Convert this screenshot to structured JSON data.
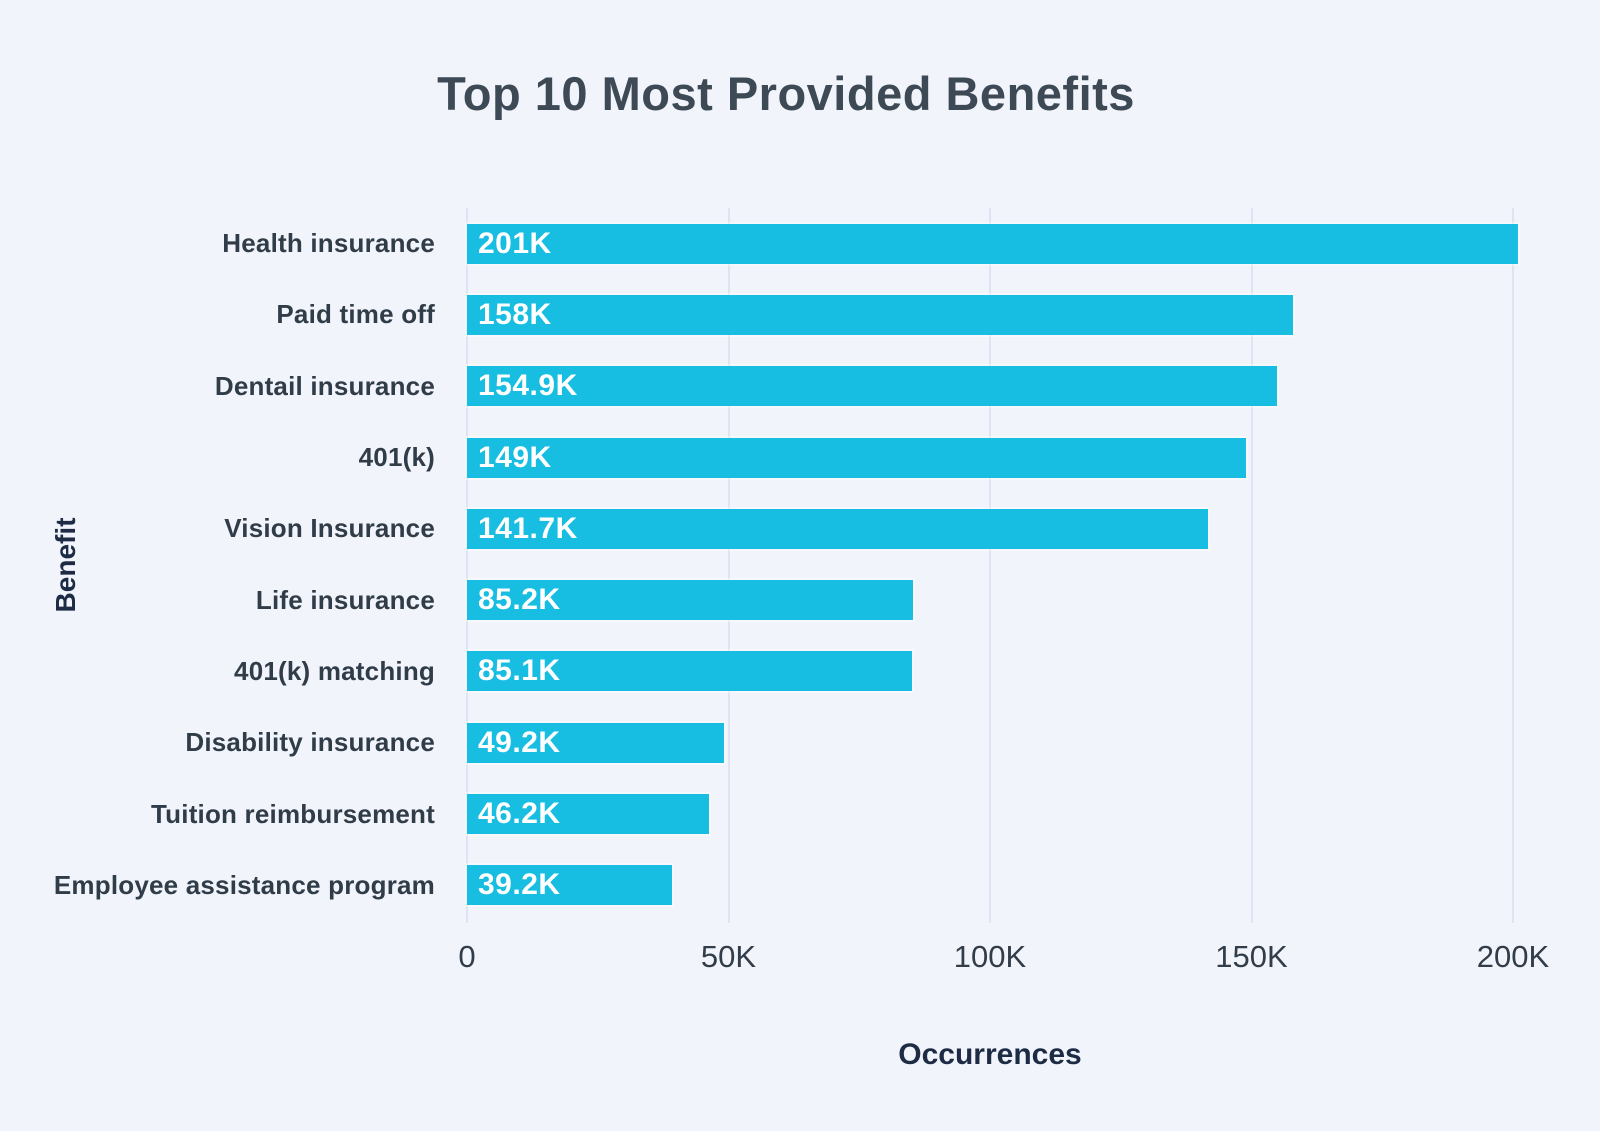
{
  "page": {
    "background": "#f1f5fb"
  },
  "chart_data": {
    "type": "bar",
    "orientation": "horizontal",
    "title": "Top 10 Most Provided Benefits",
    "xlabel": "Occurrences",
    "ylabel": "Benefit",
    "xlim": [
      0,
      200000
    ],
    "grid": true,
    "legend": false,
    "bar_color": "#17bee2",
    "value_label_color": "#ffffff",
    "categories": [
      "Health insurance",
      "Paid time off",
      "Dentail insurance",
      "401(k)",
      "Vision Insurance",
      "Life insurance",
      "401(k) matching",
      "Disability insurance",
      "Tuition reimbursement",
      "Employee assistance program"
    ],
    "values": [
      201000,
      158000,
      154900,
      149000,
      141700,
      85200,
      85100,
      49200,
      46200,
      39200
    ],
    "value_labels": [
      "201K",
      "158K",
      "154.9K",
      "149K",
      "141.7K",
      "85.2K",
      "85.1K",
      "49.2K",
      "46.2K",
      "39.2K"
    ],
    "xticks": [
      {
        "value": 0,
        "label": "0"
      },
      {
        "value": 50000,
        "label": "50K"
      },
      {
        "value": 100000,
        "label": "100K"
      },
      {
        "value": 150000,
        "label": "150K"
      },
      {
        "value": 200000,
        "label": "200K"
      }
    ]
  }
}
